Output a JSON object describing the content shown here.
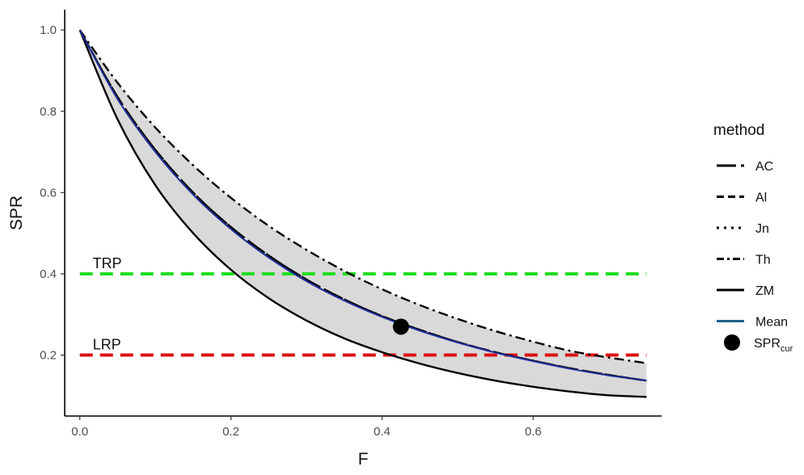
{
  "chart_data": {
    "type": "line",
    "xlabel": "F",
    "ylabel": "SPR",
    "xlim": [
      -0.02,
      0.77
    ],
    "ylim": [
      0.05,
      1.05
    ],
    "x_ticks": [
      0.0,
      0.2,
      0.4,
      0.6
    ],
    "x_tick_labels": [
      "0.0",
      "0.2",
      "0.4",
      "0.6"
    ],
    "y_ticks": [
      0.2,
      0.4,
      0.6,
      0.8,
      1.0
    ],
    "y_tick_labels": [
      "0.2",
      "0.4",
      "0.6",
      "0.8",
      "1.0"
    ],
    "grid": false,
    "legend_position": "right",
    "legend_title": "method",
    "x": [
      0.0,
      0.05,
      0.1,
      0.15,
      0.2,
      0.25,
      0.3,
      0.35,
      0.4,
      0.45,
      0.5,
      0.55,
      0.6,
      0.65,
      0.7,
      0.75
    ],
    "series": [
      {
        "name": "AC",
        "line_style": "longdash",
        "color": "#000000",
        "values": [
          1.0,
          0.835,
          0.705,
          0.6,
          0.515,
          0.445,
          0.386,
          0.337,
          0.296,
          0.262,
          0.232,
          0.207,
          0.186,
          0.167,
          0.151,
          0.137
        ]
      },
      {
        "name": "Al",
        "line_style": "dashed",
        "color": "#000000",
        "values": [
          1.0,
          0.835,
          0.705,
          0.6,
          0.515,
          0.445,
          0.386,
          0.337,
          0.296,
          0.262,
          0.232,
          0.207,
          0.186,
          0.167,
          0.151,
          0.137
        ]
      },
      {
        "name": "Jn",
        "line_style": "dotted",
        "color": "#000000",
        "values": [
          1.0,
          0.835,
          0.705,
          0.6,
          0.515,
          0.445,
          0.386,
          0.337,
          0.296,
          0.262,
          0.232,
          0.207,
          0.186,
          0.167,
          0.151,
          0.137
        ]
      },
      {
        "name": "Th",
        "line_style": "dotdash",
        "color": "#000000",
        "values": [
          1.0,
          0.87,
          0.76,
          0.667,
          0.587,
          0.518,
          0.459,
          0.407,
          0.362,
          0.323,
          0.289,
          0.259,
          0.233,
          0.21,
          0.194,
          0.18
        ]
      },
      {
        "name": "ZM",
        "line_style": "solid",
        "color": "#000000",
        "values": [
          1.0,
          0.78,
          0.618,
          0.5,
          0.41,
          0.34,
          0.285,
          0.241,
          0.207,
          0.179,
          0.156,
          0.137,
          0.122,
          0.11,
          0.101,
          0.097
        ]
      },
      {
        "name": "Mean",
        "line_style": "solid",
        "color": "#1f2f9a",
        "legend_color": "#1f5f8b",
        "values": [
          1.0,
          0.83,
          0.7,
          0.595,
          0.51,
          0.44,
          0.382,
          0.334,
          0.294,
          0.26,
          0.231,
          0.206,
          0.185,
          0.166,
          0.15,
          0.137
        ]
      }
    ],
    "ribbon": {
      "fill": "#d9d9d9",
      "lower": [
        1.0,
        0.78,
        0.618,
        0.5,
        0.41,
        0.34,
        0.285,
        0.241,
        0.207,
        0.179,
        0.156,
        0.137,
        0.122,
        0.11,
        0.101,
        0.097
      ],
      "upper": [
        1.0,
        0.87,
        0.76,
        0.667,
        0.587,
        0.518,
        0.459,
        0.407,
        0.362,
        0.323,
        0.289,
        0.259,
        0.233,
        0.21,
        0.194,
        0.18
      ]
    },
    "reference_lines": [
      {
        "label": "TRP",
        "y": 0.4,
        "color": "#22dd22",
        "line_style": "dashed",
        "x_range": [
          0.0,
          0.75
        ]
      },
      {
        "label": "LRP",
        "y": 0.2,
        "color": "#dd1111",
        "line_style": "dashed",
        "x_range": [
          0.0,
          0.75
        ]
      }
    ],
    "point": {
      "label_main": "SPR",
      "label_sub": "cur",
      "x": 0.425,
      "y": 0.27,
      "color": "#000000"
    }
  }
}
